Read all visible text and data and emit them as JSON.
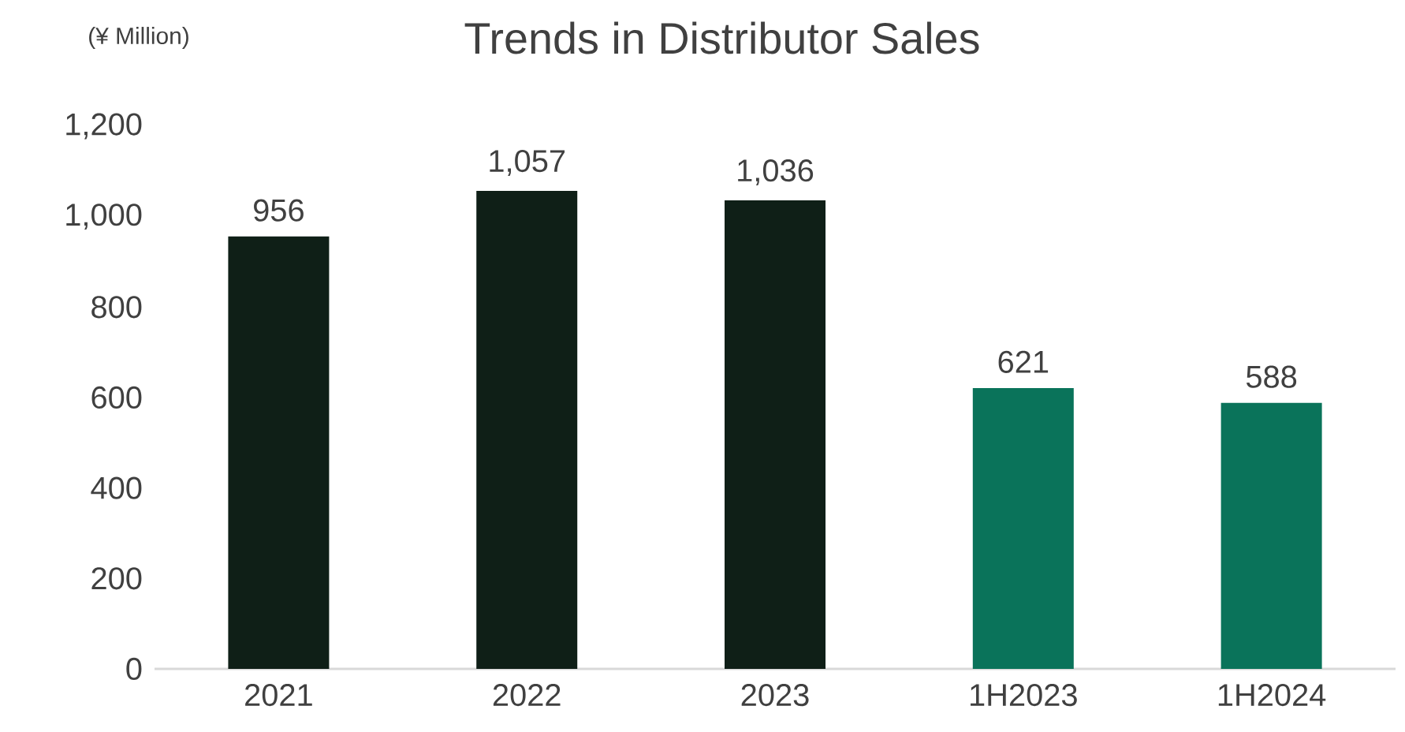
{
  "chart_data": {
    "type": "bar",
    "title": "Trends in Distributor Sales",
    "ylabel": "(¥ Million)",
    "categories": [
      "2021",
      "2022",
      "2023",
      "1H2023",
      "1H2024"
    ],
    "values": [
      956,
      1057,
      1036,
      621,
      588
    ],
    "value_labels": [
      "956",
      "1,057",
      "1,036",
      "621",
      "588"
    ],
    "colors": [
      "#0f1f17",
      "#0f1f17",
      "#0f1f17",
      "#0a735a",
      "#0a735a"
    ],
    "ylim": [
      0,
      1200
    ],
    "yticks": [
      {
        "value": 0,
        "label": "0"
      },
      {
        "value": 200,
        "label": "200"
      },
      {
        "value": 400,
        "label": "400"
      },
      {
        "value": 600,
        "label": "600"
      },
      {
        "value": 800,
        "label": "800"
      },
      {
        "value": 1000,
        "label": "1,000"
      },
      {
        "value": 1200,
        "label": "1,200"
      }
    ],
    "grid": false
  }
}
